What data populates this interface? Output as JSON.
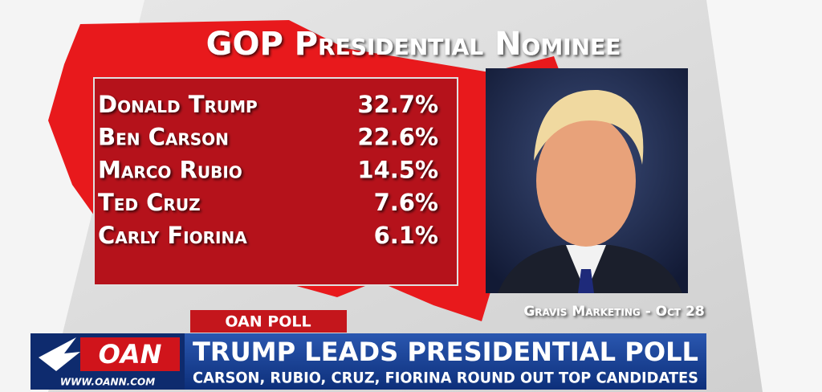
{
  "header": {
    "title": "GOP Presidential Nominee"
  },
  "table": {
    "rows": [
      [
        "Donald Trump",
        "32.7%"
      ],
      [
        "Ben Carson",
        "22.6%"
      ],
      [
        "Marco Rubio",
        "14.5%"
      ],
      [
        "Ted Cruz",
        "7.6%"
      ],
      [
        "Carly Fiorina",
        "6.1%"
      ]
    ]
  },
  "source": "Gravis Marketing - Oct 28",
  "lower_third": {
    "tag": "OAN POLL",
    "logo": "OAN",
    "url": "WWW.OANN.COM",
    "headline": "TRUMP LEADS PRESIDENTIAL POLL",
    "subheadline": "CARSON, RUBIO, CRUZ, FIORINA ROUND OUT TOP CANDIDATES"
  }
}
